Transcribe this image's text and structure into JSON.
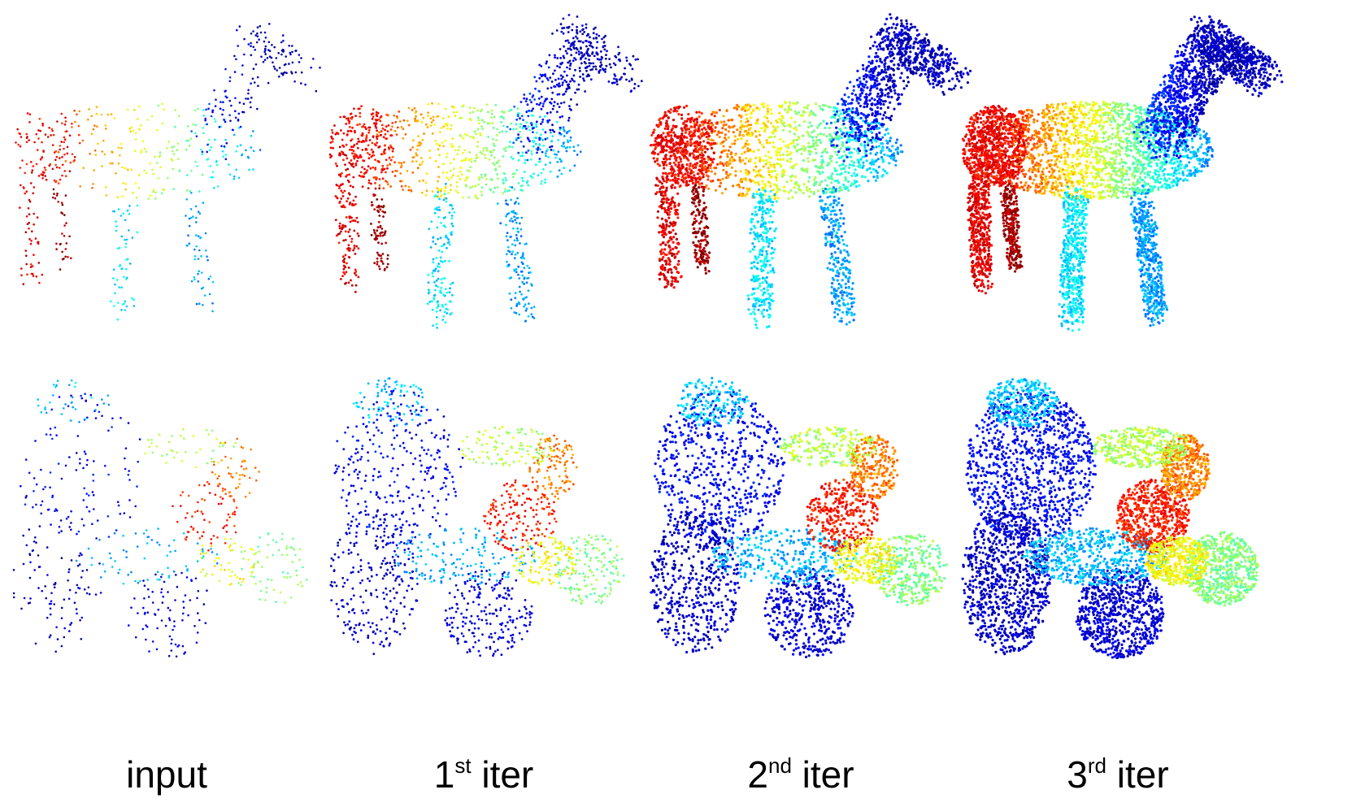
{
  "figure": {
    "colormap": [
      "#00008f",
      "#0000ff",
      "#0080ff",
      "#00ffff",
      "#80ff80",
      "#ffff00",
      "#ff8000",
      "#ff0000",
      "#800000"
    ],
    "rows": [
      {
        "object": "horse"
      },
      {
        "object": "mechanical-part"
      }
    ],
    "columns": [
      {
        "label": "input",
        "sup": "",
        "suffix": "",
        "density": 1
      },
      {
        "label": "1",
        "sup": "st",
        "suffix": " iter",
        "density": 2.5
      },
      {
        "label": "2",
        "sup": "nd",
        "suffix": " iter",
        "density": 5
      },
      {
        "label": "3",
        "sup": "rd",
        "suffix": " iter",
        "density": 9
      }
    ]
  }
}
